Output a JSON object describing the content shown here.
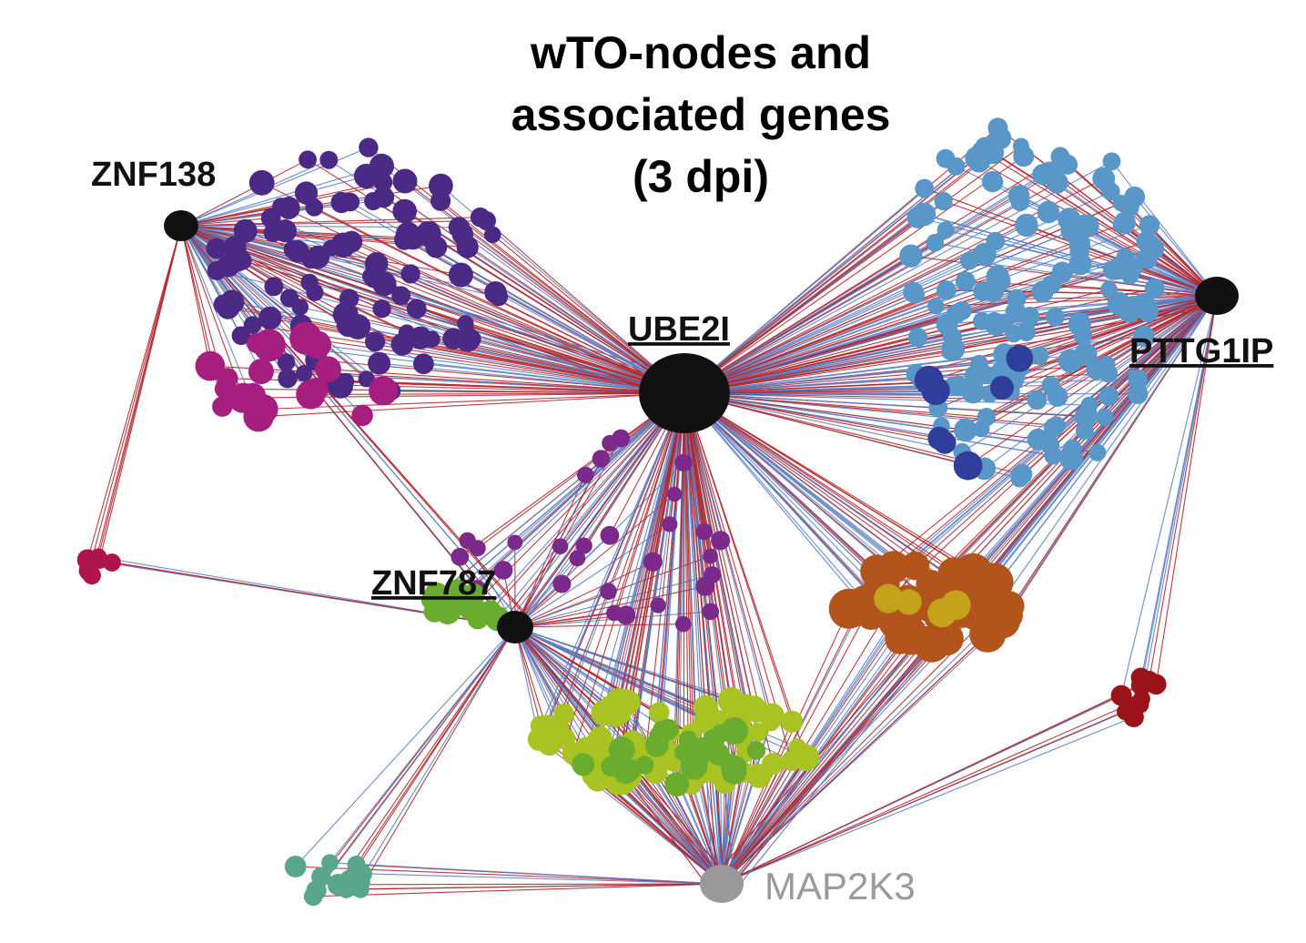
{
  "title_lines": [
    "wTO-nodes and",
    "associated genes",
    "(3 dpi)"
  ],
  "hubs": {
    "znf138": {
      "label": "ZNF138",
      "underlined": false
    },
    "ube2i": {
      "label": "UBE2I",
      "underlined": true
    },
    "pttg1ip": {
      "label": "PTTG1IP",
      "underlined": true
    },
    "znf787": {
      "label": "ZNF787",
      "underlined": true
    },
    "map2k3": {
      "label": "MAP2K3",
      "underlined": false
    }
  },
  "colors": {
    "edge_positive": "#b0282e",
    "edge_negative": "#5b7fc7",
    "hub_node": "#111111",
    "map2k3_node": "#999999",
    "cluster_indigo": "#4a2a85",
    "cluster_magenta": "#a61f7e",
    "cluster_crimson": "#b0144c",
    "cluster_skyblue": "#5a97c9",
    "cluster_navy": "#2e3e9a",
    "cluster_lightpurple": "#7b2a8c",
    "cluster_green": "#6aac2e",
    "cluster_orange": "#b2541c",
    "cluster_mustard": "#c4a21a",
    "cluster_lime": "#a9c422",
    "cluster_darkred": "#9a1318",
    "cluster_teal": "#5aa68a"
  }
}
